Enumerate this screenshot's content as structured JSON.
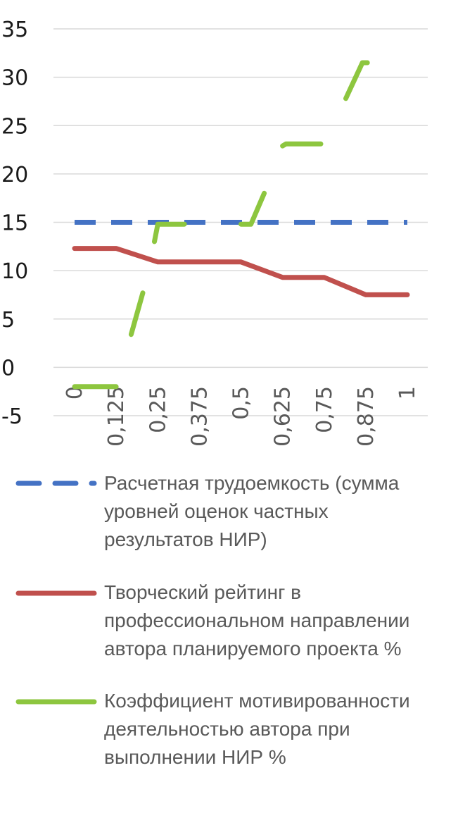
{
  "chart_data": {
    "type": "line",
    "title": "",
    "xlabel": "",
    "ylabel": "",
    "categories": [
      "0",
      "0,125",
      "0,25",
      "0,375",
      "0,5",
      "0,625",
      "0,75",
      "0,875",
      "1"
    ],
    "ylim": [
      -5,
      35
    ],
    "yticks": [
      "35",
      "30",
      "25",
      "20",
      "15",
      "10",
      "5",
      "0",
      "-5"
    ],
    "grid": true,
    "legend_position": "bottom",
    "series": [
      {
        "name": "Расчетная трудоемкость (сумма уровней оценок частных результатов НИР)",
        "style": "dashed",
        "color": "#4472C4",
        "points": [
          [
            0,
            15
          ],
          [
            1,
            15
          ]
        ]
      },
      {
        "name": "Творческий рейтинг в профессиональном направлении автора планируемого проекта %",
        "style": "solid",
        "color": "#C0504D",
        "points": [
          [
            0,
            12.3
          ],
          [
            0.125,
            12.3
          ],
          [
            0.25,
            10.9
          ],
          [
            0.5,
            10.9
          ],
          [
            0.625,
            9.3
          ],
          [
            0.75,
            9.3
          ],
          [
            0.875,
            7.5
          ],
          [
            1,
            7.5
          ]
        ]
      },
      {
        "name": "Коэффициент мотивированности деятельностью автора при выполнении НИР %",
        "style": "broken",
        "color": "#8DC63F",
        "segments": [
          [
            [
              0,
              -2
            ],
            [
              0.125,
              -2
            ]
          ],
          [
            [
              0.17,
              3.4
            ],
            [
              0.205,
              7.7
            ]
          ],
          [
            [
              0.24,
              13
            ],
            [
              0.25,
              14.8
            ],
            [
              0.33,
              14.8
            ]
          ],
          [
            [
              0.5,
              14.8
            ],
            [
              0.53,
              14.8
            ],
            [
              0.57,
              18
            ]
          ],
          [
            [
              0.625,
              22.9
            ],
            [
              0.635,
              23.1
            ],
            [
              0.74,
              23.1
            ]
          ],
          [
            [
              0.815,
              27.8
            ],
            [
              0.865,
              31.5
            ],
            [
              0.88,
              31.5
            ]
          ]
        ]
      }
    ]
  }
}
